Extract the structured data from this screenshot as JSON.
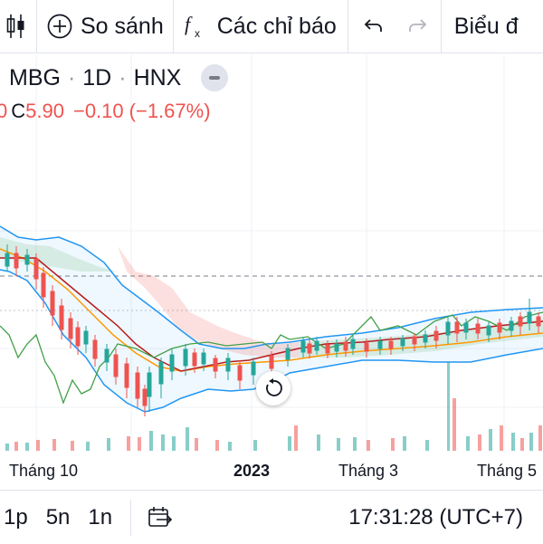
{
  "toolbar": {
    "compare_label": "So sánh",
    "indicators_label": "Các chỉ báo",
    "chart_type_label": "Biểu đ"
  },
  "legend": {
    "symbol": "MBG",
    "interval": "1D",
    "exchange": "HNX",
    "close_prefix": "C",
    "close_value": "5.90",
    "change": "−0.10",
    "change_pct": "(−1.67%)",
    "partial_prev": "0"
  },
  "axis": {
    "label_oct": "Tháng 10",
    "label_2023": "2023",
    "label_mar": "Tháng 3",
    "label_may": "Tháng 5"
  },
  "bottom": {
    "tf_1p": "1p",
    "tf_5n": "5n",
    "tf_1n": "1n",
    "time": "17:31:28 (UTC+7)"
  },
  "colors": {
    "up": "#26a69a",
    "down": "#ef5350",
    "bb": "#2196f3",
    "ma": "#ff9800",
    "lagging": "#43a047",
    "baseline": "#b71c1c"
  },
  "icons": [
    "candles-icon",
    "plus-circle-icon",
    "fx-icon",
    "undo-icon",
    "redo-icon",
    "reset-view-icon",
    "calendar-goto-icon",
    "minus-icon"
  ]
}
